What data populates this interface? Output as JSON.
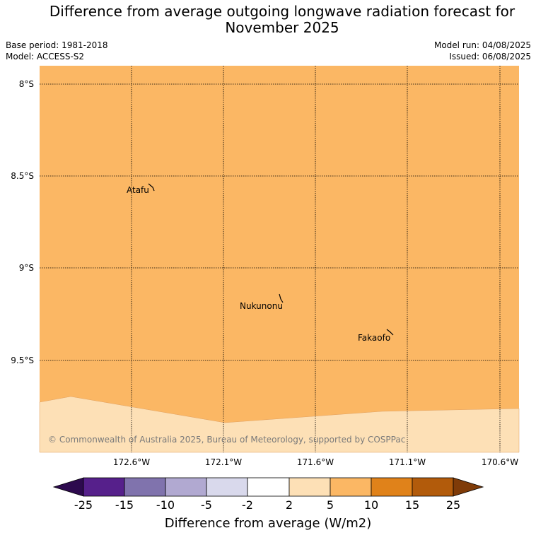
{
  "header": {
    "title_line1": "Difference from average outgoing longwave radiation forecast for",
    "title_line2": "November 2025",
    "base_period": "Base period: 1981-2018",
    "model": "Model: ACCESS-S2",
    "model_run": "Model run: 04/08/2025",
    "issued": "Issued: 06/08/2025"
  },
  "map": {
    "lat_labels": [
      "8°S",
      "8.5°S",
      "9°S",
      "9.5°S"
    ],
    "lon_labels": [
      "172.6°W",
      "172.1°W",
      "171.6°W",
      "171.1°W",
      "170.6°W"
    ],
    "places": [
      {
        "name": "Atafu"
      },
      {
        "name": "Nukunonu"
      },
      {
        "name": "Fakaofo"
      }
    ],
    "fill_colors": {
      "main": "#fbb764",
      "lower": "#fde0b6"
    },
    "copyright": "© Commonwealth of Australia 2025, Bureau of Meteorology, supported by COSPPac"
  },
  "colorbar": {
    "label": "Difference from average (W/m2)",
    "ticks": [
      "-25",
      "-15",
      "-10",
      "-5",
      "-2",
      "2",
      "5",
      "10",
      "15",
      "25"
    ],
    "colors": [
      "#2d0a4e",
      "#56208b",
      "#8073ad",
      "#b1a9d1",
      "#d9d9ec",
      "#ffffff",
      "#fde0b6",
      "#fbb764",
      "#e0821a",
      "#b25b0b",
      "#7f3b08"
    ]
  }
}
